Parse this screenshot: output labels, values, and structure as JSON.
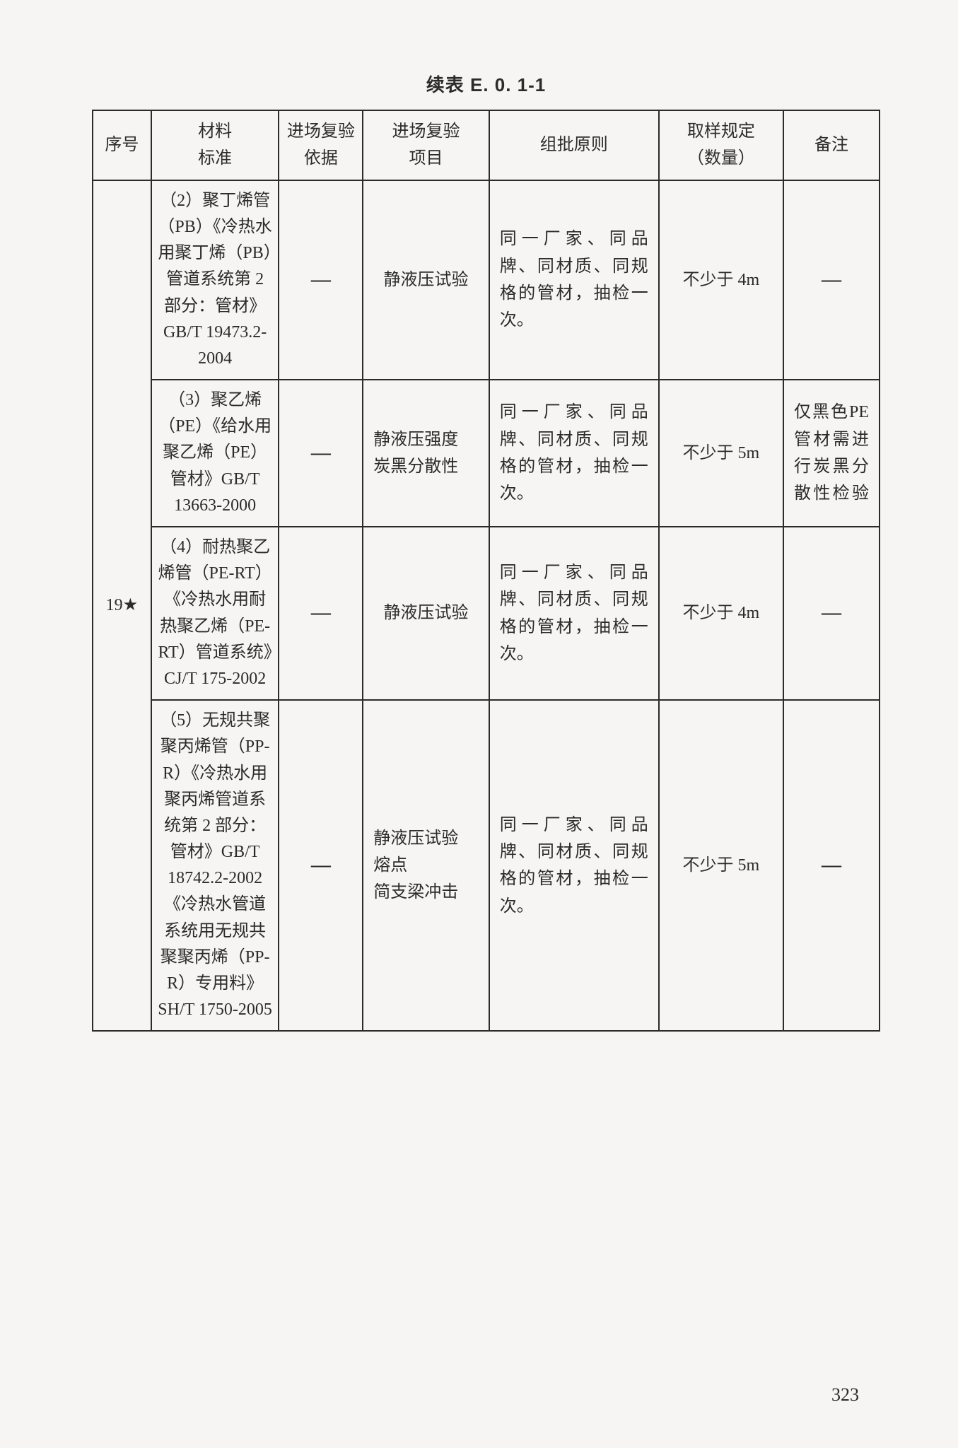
{
  "title": "续表 E. 0. 1-1",
  "pageNumber": "323",
  "headers": {
    "seq": "序号",
    "material": "材料\n标准",
    "basis": "进场复验\n依据",
    "item": "进场复验\n项目",
    "batch": "组批原则",
    "sampling": "取样规定\n（数量）",
    "note": "备注"
  },
  "seqValue": "19★",
  "dash": "—",
  "rows": [
    {
      "material": "（2）聚丁烯管（PB）《冷热水用聚丁烯（PB）管道系统第 2 部分：管材》GB/T 19473.2-2004",
      "item": "静液压试验",
      "batch": "同一厂家、同品牌、同材质、同规格的管材，抽检一次。",
      "sampling": "不少于 4m",
      "note": "—"
    },
    {
      "material": "（3）聚乙烯（PE）《给水用聚乙烯（PE）管材》GB/T 13663-2000",
      "item": "静液压强度\n炭黑分散性",
      "batch": "同一厂家、同品牌、同材质、同规格的管材，抽检一次。",
      "sampling": "不少于 5m",
      "note": "仅黑色PE管材需进行炭黑分散性检验"
    },
    {
      "material": "（4）耐热聚乙烯管（PE-RT）《冷热水用耐热聚乙烯（PE-RT）管道系统》CJ/T 175-2002",
      "item": "静液压试验",
      "batch": "同一厂家、同品牌、同材质、同规格的管材，抽检一次。",
      "sampling": "不少于 4m",
      "note": "—"
    },
    {
      "material": "（5）无规共聚聚丙烯管（PP-R）《冷热水用聚丙烯管道系统第 2 部分：管材》GB/T 18742.2-2002《冷热水管道系统用无规共聚聚丙烯（PP-R）专用料》SH/T 1750-2005",
      "item": "静液压试验\n熔点\n简支梁冲击",
      "batch": "同一厂家、同品牌、同材质、同规格的管材，抽检一次。",
      "sampling": "不少于 5m",
      "note": "—"
    }
  ]
}
